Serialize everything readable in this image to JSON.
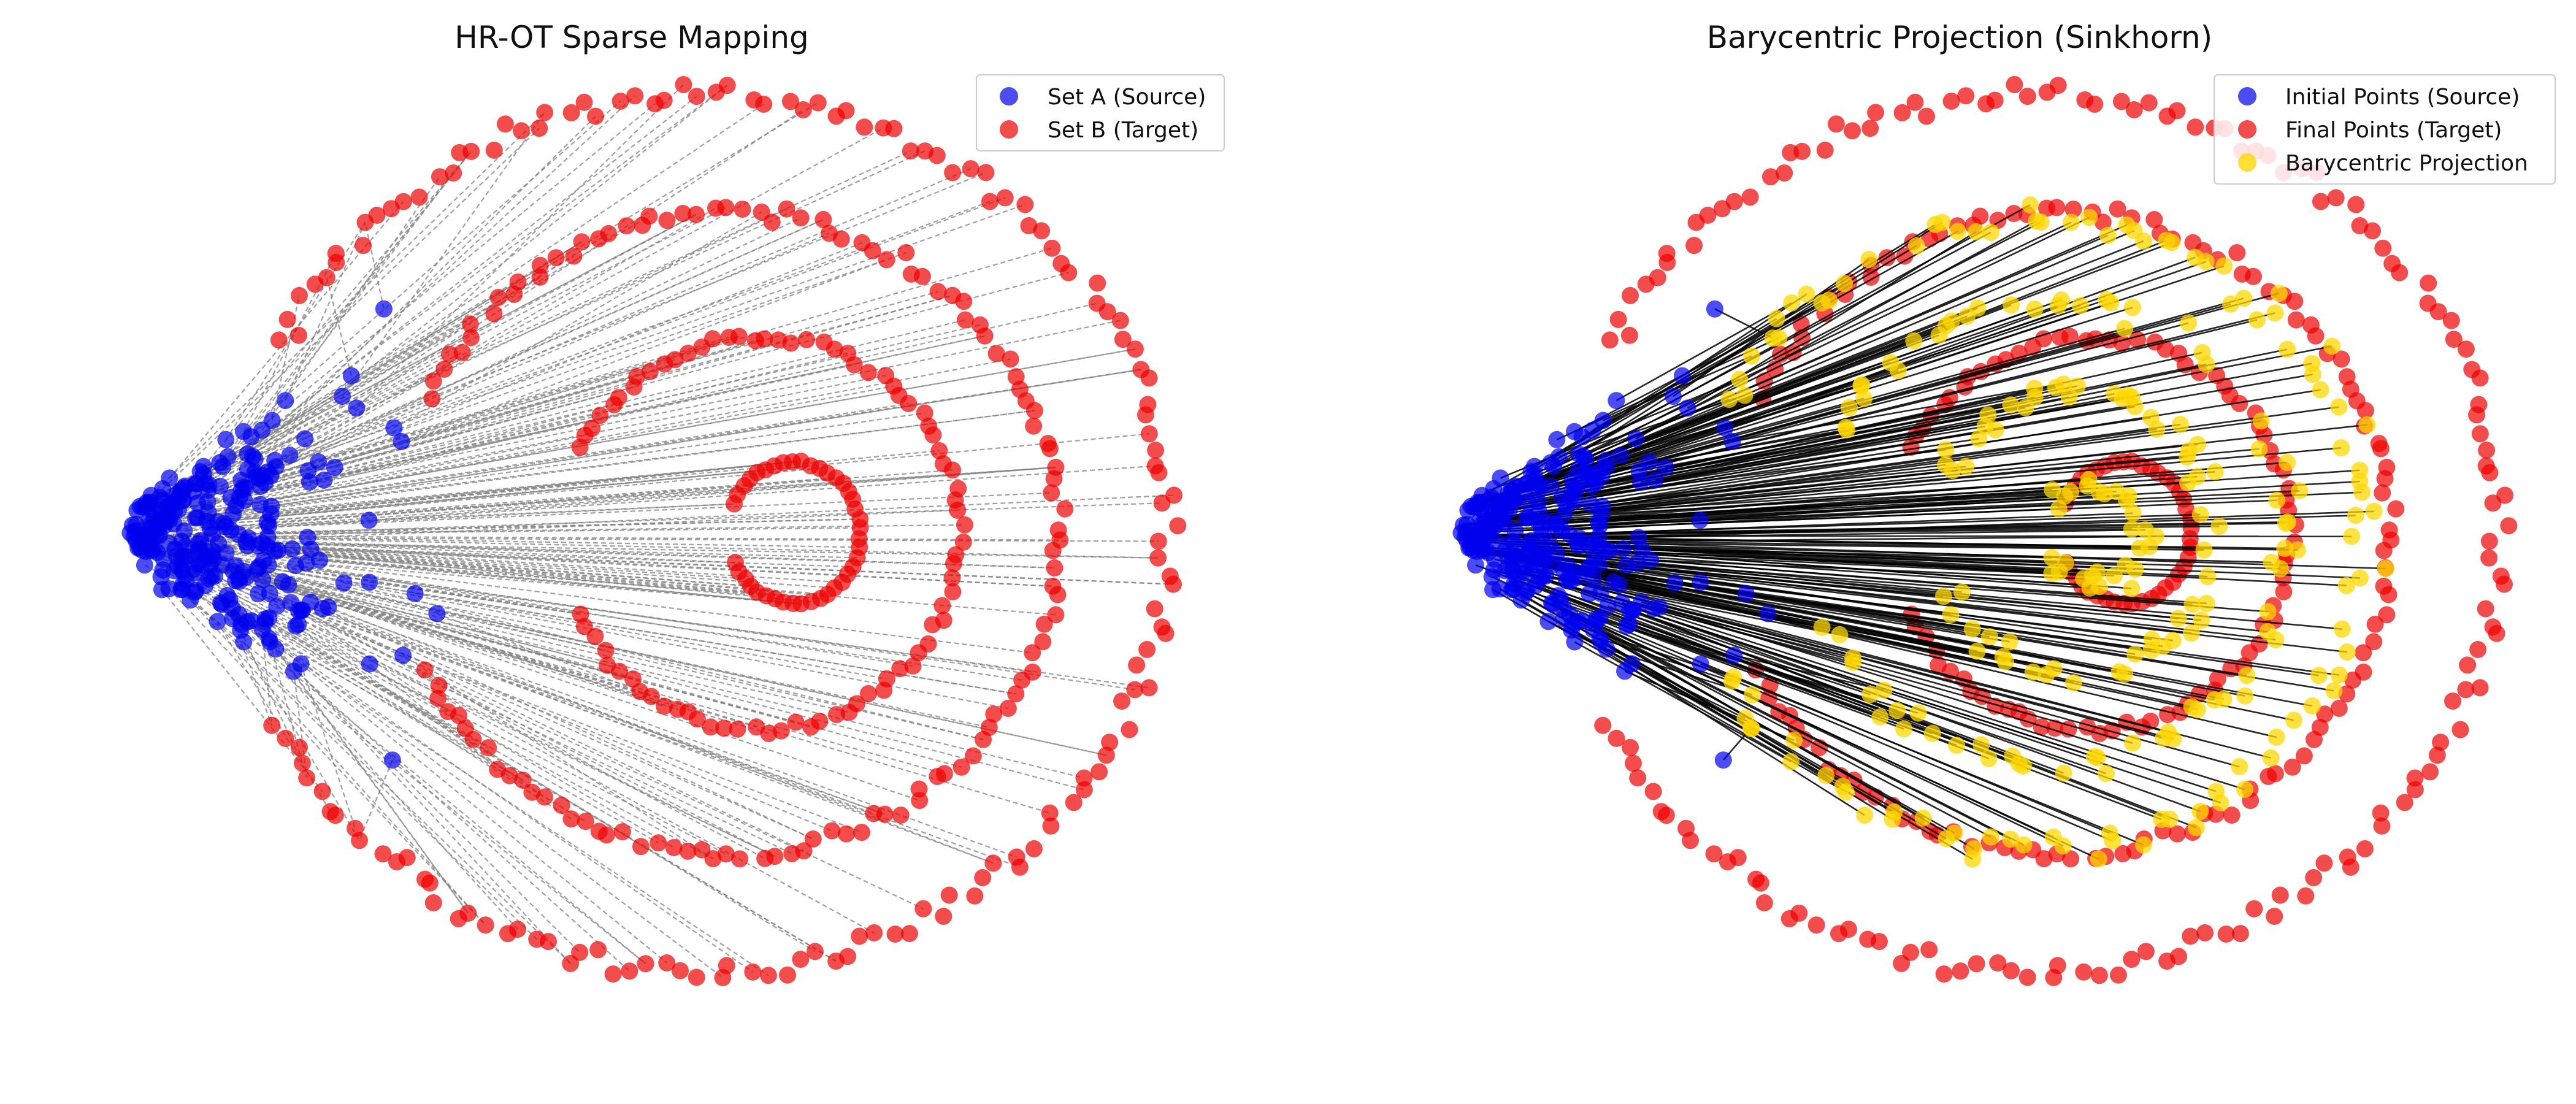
{
  "chart_data": [
    {
      "type": "scatter",
      "title": "HR-OT Sparse Mapping",
      "xlabel": "",
      "ylabel": "",
      "axes_visible": false,
      "grid": false,
      "xlim": [
        -0.6,
        12.8
      ],
      "ylim": [
        -5.8,
        5.8
      ],
      "legend_position": "top-right",
      "legend": [
        "Set A (Source)",
        "Set B (Target)"
      ],
      "colors": {
        "source": "#0000ee",
        "target": "#ee0000",
        "link": "#808080"
      },
      "link_style": "dashed",
      "source": {
        "name": "Set A (Source)",
        "description": "cone-shaped cloud of points spreading from x≈0 at y=0 to x≈5 at y=±4.5",
        "x": [
          0.0,
          0.3,
          0.6,
          0.9,
          1.2,
          1.5,
          1.8,
          2.1,
          2.4,
          2.7,
          3.0,
          3.3,
          3.6,
          3.9,
          4.2,
          4.5,
          4.8,
          5.0
        ],
        "y_extent": [
          0.0,
          0.4,
          0.8,
          1.1,
          1.4,
          1.7,
          2.0,
          2.2,
          2.5,
          2.7,
          2.9,
          3.1,
          3.3,
          3.5,
          3.7,
          3.9,
          4.1,
          4.3
        ]
      },
      "target": {
        "name": "Set B (Target)",
        "description": "four concentric ring-like curves opening to the left, centred near x≈8, y=0",
        "rings": [
          {
            "cx": 8.0,
            "rx": 0.8,
            "ry": 0.9
          },
          {
            "cx": 7.6,
            "rx": 2.4,
            "ry": 2.5
          },
          {
            "cx": 7.2,
            "rx": 4.0,
            "ry": 4.1
          },
          {
            "cx": 6.9,
            "rx": 5.6,
            "ry": 5.6
          }
        ]
      }
    },
    {
      "type": "scatter",
      "title": "Barycentric Projection (Sinkhorn)",
      "xlabel": "",
      "ylabel": "",
      "axes_visible": false,
      "grid": false,
      "xlim": [
        -0.6,
        12.8
      ],
      "ylim": [
        -5.8,
        5.8
      ],
      "legend_position": "top-right",
      "legend": [
        "Initial Points (Source)",
        "Final Points (Target)",
        "Barycentric Projection"
      ],
      "colors": {
        "source": "#0000ee",
        "target": "#ee0000",
        "projection": "#ffd700",
        "link": "#000000"
      },
      "link_style": "solid",
      "projection_shrink": 0.72
    }
  ]
}
